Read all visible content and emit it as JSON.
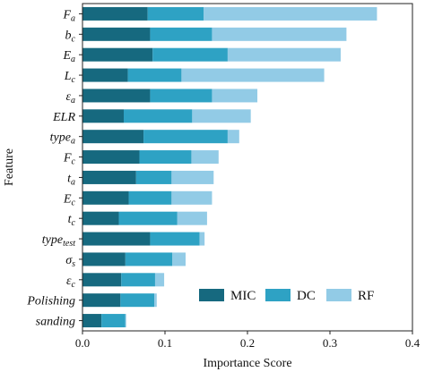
{
  "chart_data": {
    "type": "bar",
    "orientation": "horizontal",
    "stacked": true,
    "xlabel": "Importance Score",
    "ylabel": "Feature",
    "xlim": [
      0.0,
      0.4
    ],
    "xticks": [
      "0.0",
      "0.1",
      "0.2",
      "0.3",
      "0.4"
    ],
    "grid": false,
    "legend_position": "bottom-right",
    "categories": [
      {
        "base": "F",
        "sub": "a"
      },
      {
        "base": "b",
        "sub": "c"
      },
      {
        "base": "E",
        "sub": "a"
      },
      {
        "base": "L",
        "sub": "c"
      },
      {
        "base": "ε",
        "sub": "a"
      },
      {
        "base": "ELR",
        "sub": ""
      },
      {
        "base": "type",
        "sub": "a"
      },
      {
        "base": "F",
        "sub": "c"
      },
      {
        "base": "t",
        "sub": "a"
      },
      {
        "base": "E",
        "sub": "c"
      },
      {
        "base": "t",
        "sub": "c"
      },
      {
        "base": "type",
        "sub": "test"
      },
      {
        "base": "σ",
        "sub": "s"
      },
      {
        "base": "ε",
        "sub": "c"
      },
      {
        "base": "Polishing",
        "sub": ""
      },
      {
        "base": "sanding",
        "sub": ""
      }
    ],
    "series": [
      {
        "name": "MIC",
        "color": "#16697f",
        "values": [
          0.079,
          0.082,
          0.085,
          0.055,
          0.082,
          0.05,
          0.074,
          0.069,
          0.065,
          0.056,
          0.044,
          0.082,
          0.052,
          0.047,
          0.046,
          0.023
        ]
      },
      {
        "name": "DC",
        "color": "#2ea2c4",
        "values": [
          0.068,
          0.075,
          0.091,
          0.065,
          0.075,
          0.083,
          0.102,
          0.063,
          0.043,
          0.052,
          0.071,
          0.06,
          0.057,
          0.041,
          0.041,
          0.029
        ]
      },
      {
        "name": "RF",
        "color": "#92cbe6",
        "values": [
          0.21,
          0.163,
          0.137,
          0.173,
          0.055,
          0.071,
          0.014,
          0.033,
          0.051,
          0.049,
          0.036,
          0.006,
          0.016,
          0.011,
          0.003,
          0.001
        ]
      }
    ]
  }
}
